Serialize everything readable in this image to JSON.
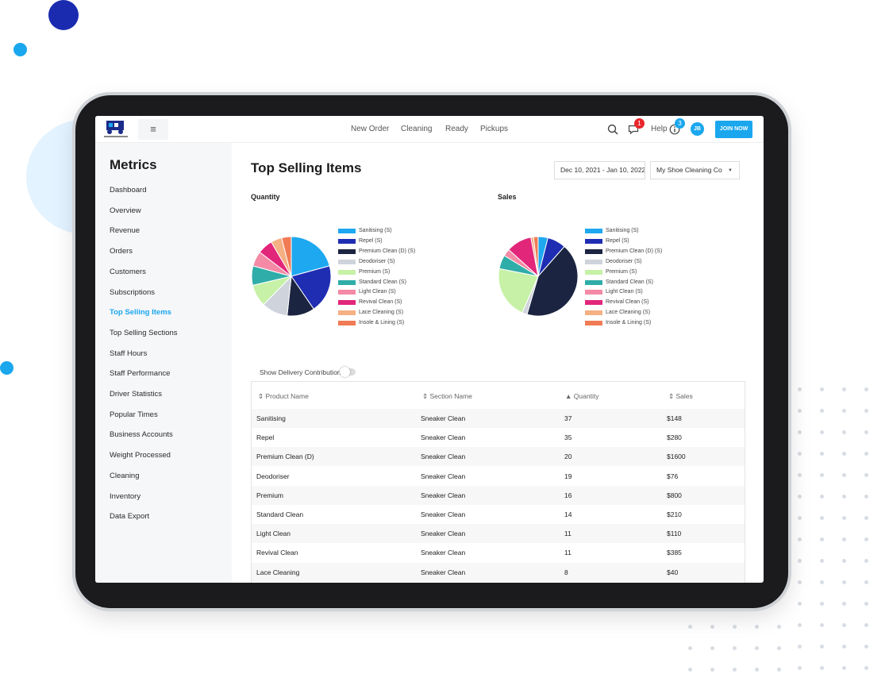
{
  "app": {
    "nav": [
      "New Order",
      "Cleaning",
      "Ready",
      "Pickups"
    ],
    "help_label": "Help",
    "messages_badge": "1",
    "help_badge": "3",
    "avatar_initials": "JB",
    "join_label": "JOIN NOW",
    "menu_glyph": "≡"
  },
  "sidebar": {
    "title": "Metrics",
    "items": [
      "Dashboard",
      "Overview",
      "Revenue",
      "Orders",
      "Customers",
      "Subscriptions",
      "Top Selling Items",
      "Top Selling Sections",
      "Staff Hours",
      "Staff Performance",
      "Driver Statistics",
      "Popular Times",
      "Business Accounts",
      "Weight Processed",
      "Cleaning",
      "Inventory",
      "Data Export"
    ],
    "active_index": 6
  },
  "main": {
    "title": "Top Selling Items",
    "date_range": "Dec 10, 2021 - Jan 10, 2022",
    "shop_select": "My Shoe Cleaning Co",
    "toggle_label": "Show Delivery Contribution",
    "toggle_on": false
  },
  "colors": {
    "accent": "#1aa7ee",
    "badge_red": "#e8262c"
  },
  "chart_data": [
    {
      "type": "pie",
      "title": "Quantity",
      "categories": [
        "Sanitising (S)",
        "Repel (S)",
        "Premium Clean (D) (S)",
        "Deodoriser (S)",
        "Premium (S)",
        "Standard Clean (S)",
        "Light Clean (S)",
        "Revival Clean (S)",
        "Lace Cleaning (S)",
        "Insole & Lining (S)"
      ],
      "values": [
        37,
        35,
        20,
        19,
        16,
        14,
        11,
        11,
        8,
        7
      ],
      "colors": [
        "#1ea8f0",
        "#1f2db3",
        "#1b2440",
        "#cfd3dc",
        "#c6f1a6",
        "#2fada8",
        "#f48aa5",
        "#e2267a",
        "#f5b084",
        "#f07b55"
      ],
      "legend": "right"
    },
    {
      "type": "pie",
      "title": "Sales",
      "categories": [
        "Sanitising (S)",
        "Repel (S)",
        "Premium Clean (D) (S)",
        "Deodoriser (S)",
        "Premium (S)",
        "Standard Clean (S)",
        "Light Clean (S)",
        "Revival Clean (S)",
        "Lace Cleaning (S)",
        "Insole & Lining (S)"
      ],
      "values": [
        148,
        280,
        1600,
        76,
        800,
        210,
        110,
        385,
        40,
        70
      ],
      "colors": [
        "#1ea8f0",
        "#1f2db3",
        "#1b2440",
        "#cfd3dc",
        "#c6f1a6",
        "#2fada8",
        "#f48aa5",
        "#e2267a",
        "#f5b084",
        "#f07b55"
      ],
      "legend": "right"
    }
  ],
  "table": {
    "headers": [
      "Product Name",
      "Section Name",
      "Quantity",
      "Sales"
    ],
    "rows": [
      [
        "Sanitising",
        "Sneaker Clean",
        "37",
        "$148"
      ],
      [
        "Repel",
        "Sneaker Clean",
        "35",
        "$280"
      ],
      [
        "Premium Clean (D)",
        "Sneaker Clean",
        "20",
        "$1600"
      ],
      [
        "Deodoriser",
        "Sneaker Clean",
        "19",
        "$76"
      ],
      [
        "Premium",
        "Sneaker Clean",
        "16",
        "$800"
      ],
      [
        "Standard Clean",
        "Sneaker Clean",
        "14",
        "$210"
      ],
      [
        "Light Clean",
        "Sneaker Clean",
        "11",
        "$110"
      ],
      [
        "Revival Clean",
        "Sneaker Clean",
        "11",
        "$385"
      ],
      [
        "Lace Cleaning",
        "Sneaker Clean",
        "8",
        "$40"
      ]
    ]
  }
}
